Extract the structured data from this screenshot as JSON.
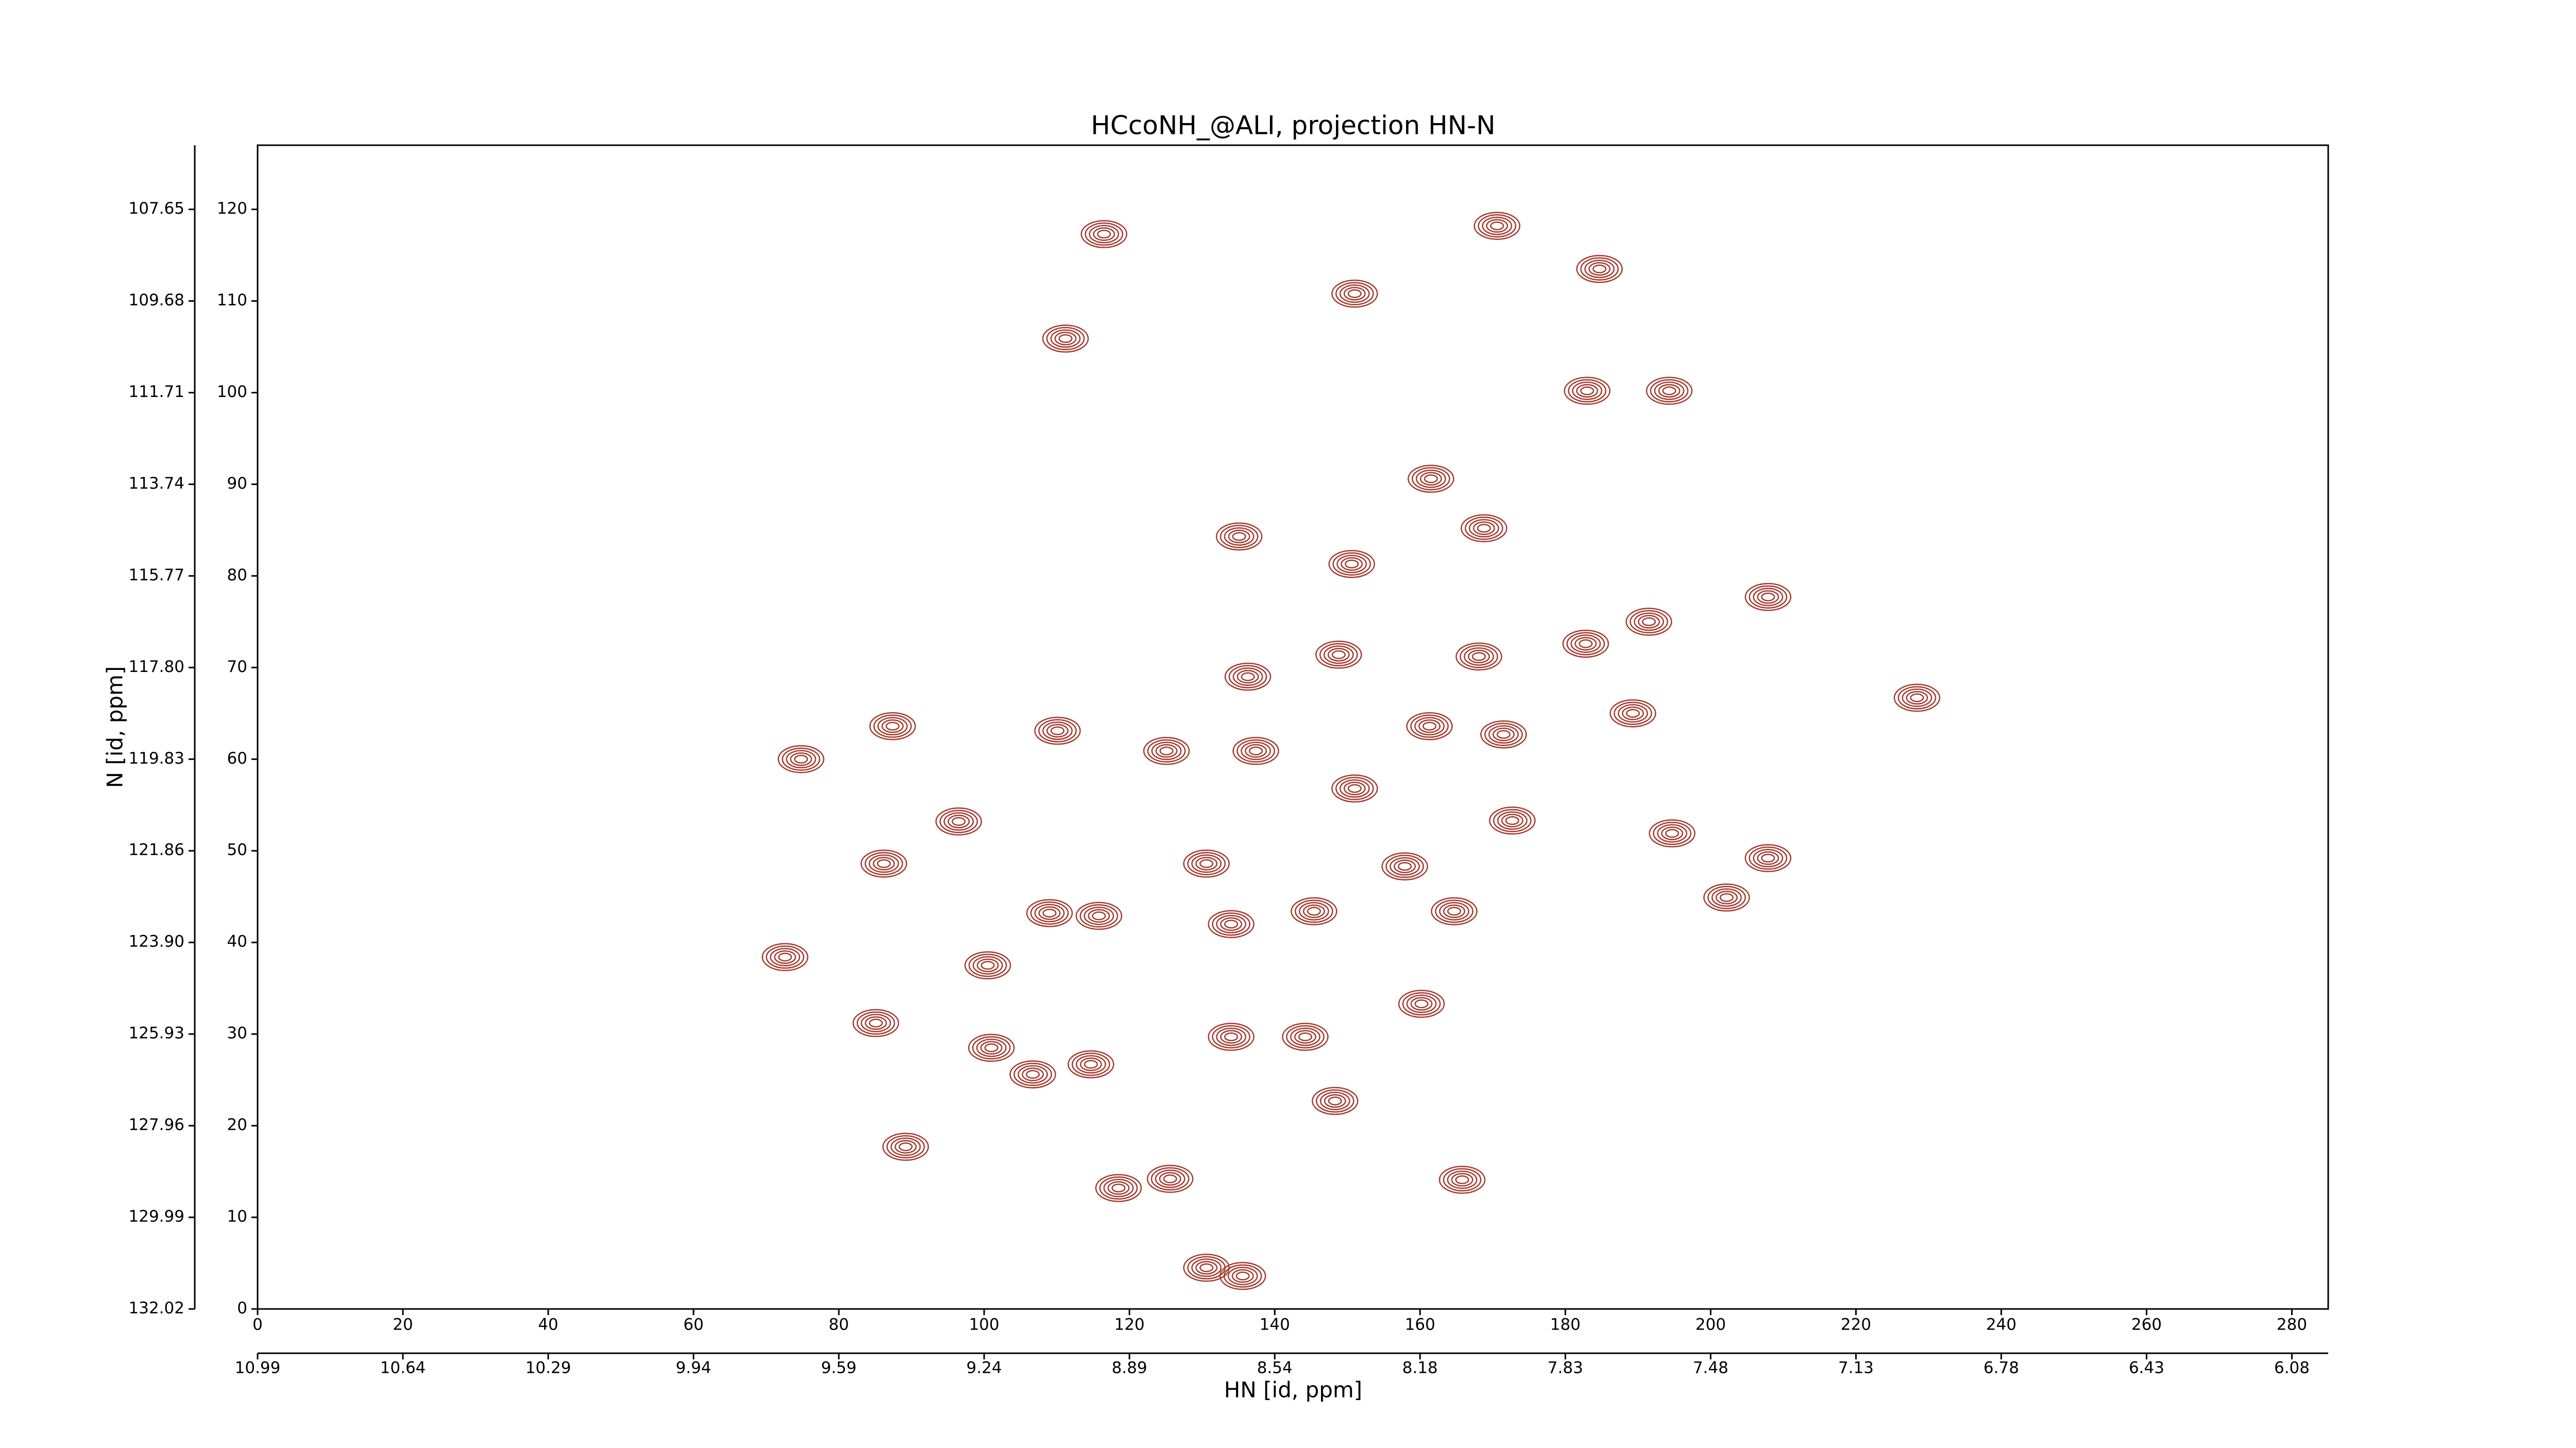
{
  "chart_data": {
    "type": "contour",
    "title": "HCcoNH_@ALI, projection HN-N",
    "xlabel": "HN [id, ppm]",
    "ylabel": "N [id, ppm]",
    "color": "#a33a2e",
    "xlim": [
      0,
      285
    ],
    "ylim": [
      0,
      127
    ],
    "xticks": [
      0,
      20,
      40,
      60,
      80,
      100,
      120,
      140,
      160,
      180,
      200,
      220,
      240,
      260,
      280
    ],
    "yticks": [
      0,
      10,
      20,
      30,
      40,
      50,
      60,
      70,
      80,
      90,
      100,
      110,
      120
    ],
    "ppm_xticks": [
      {
        "value": 0,
        "label": "10.99"
      },
      {
        "value": 20,
        "label": "10.64"
      },
      {
        "value": 40,
        "label": "10.29"
      },
      {
        "value": 60,
        "label": "9.94"
      },
      {
        "value": 80,
        "label": "9.59"
      },
      {
        "value": 100,
        "label": "9.24"
      },
      {
        "value": 120,
        "label": "8.89"
      },
      {
        "value": 140,
        "label": "8.54"
      },
      {
        "value": 160,
        "label": "8.18"
      },
      {
        "value": 180,
        "label": "7.83"
      },
      {
        "value": 200,
        "label": "7.48"
      },
      {
        "value": 220,
        "label": "7.13"
      },
      {
        "value": 240,
        "label": "6.78"
      },
      {
        "value": 260,
        "label": "6.43"
      },
      {
        "value": 280,
        "label": "6.08"
      }
    ],
    "ppm_yticks": [
      {
        "value": 0,
        "label": "132.02"
      },
      {
        "value": 10,
        "label": "129.99"
      },
      {
        "value": 20,
        "label": "127.96"
      },
      {
        "value": 30,
        "label": "125.93"
      },
      {
        "value": 40,
        "label": "123.90"
      },
      {
        "value": 50,
        "label": "121.86"
      },
      {
        "value": 60,
        "label": "119.83"
      },
      {
        "value": 70,
        "label": "117.80"
      },
      {
        "value": 80,
        "label": "115.77"
      },
      {
        "value": 90,
        "label": "113.74"
      },
      {
        "value": 100,
        "label": "111.71"
      },
      {
        "value": 110,
        "label": "109.68"
      },
      {
        "value": 120,
        "label": "107.65"
      }
    ],
    "x": [
      116.5,
      170.6,
      184.7,
      111.2,
      151,
      194.3,
      183,
      161.5,
      168.8,
      135.1,
      150.6,
      207.9,
      191.5,
      182.8,
      168.1,
      148.8,
      136.3,
      228.4,
      189.3,
      87.4,
      110.1,
      125.1,
      137.4,
      74.8,
      161.3,
      171.5,
      151,
      96.5,
      172.7,
      194.7,
      207.9,
      130.6,
      86.2,
      157.9,
      202.2,
      164.7,
      109,
      115.8,
      134,
      145.4,
      100.5,
      72.6,
      160.2,
      85.1,
      144.2,
      101,
      106.7,
      114.7,
      134,
      148.3,
      89.2,
      125.6,
      165.8,
      130.6,
      135.6,
      118.5
    ],
    "y": [
      117.3,
      118.2,
      113.5,
      105.9,
      110.8,
      100.2,
      100.2,
      90.6,
      85.2,
      84.3,
      81.3,
      77.7,
      75,
      72.6,
      71.2,
      71.4,
      69,
      66.7,
      65,
      63.6,
      63.1,
      60.9,
      60.9,
      60,
      63.6,
      62.7,
      56.8,
      53.2,
      53.3,
      51.9,
      49.2,
      48.6,
      48.6,
      48.3,
      44.9,
      43.4,
      43.2,
      42.9,
      42,
      43.4,
      37.5,
      38.4,
      33.3,
      31.2,
      29.7,
      28.5,
      25.6,
      26.7,
      29.7,
      22.7,
      17.7,
      14.2,
      14.1,
      4.5,
      3.6,
      13.2
    ]
  }
}
